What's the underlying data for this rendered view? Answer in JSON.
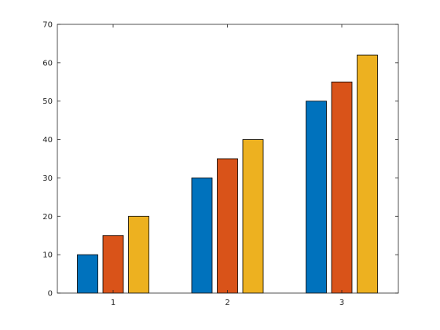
{
  "chart_data": {
    "type": "bar",
    "categories": [
      "1",
      "2",
      "3"
    ],
    "series": [
      {
        "values": [
          10,
          30,
          50
        ],
        "color": "#0072BD"
      },
      {
        "values": [
          15,
          35,
          55
        ],
        "color": "#D95319"
      },
      {
        "values": [
          20,
          40,
          62
        ],
        "color": "#EDB120"
      }
    ],
    "ylim": [
      0,
      70
    ],
    "yticks": [
      "0",
      "10",
      "20",
      "30",
      "40",
      "50",
      "60",
      "70"
    ],
    "title": "",
    "xlabel": "",
    "ylabel": "",
    "grid": false,
    "legend": "none",
    "box": true
  }
}
